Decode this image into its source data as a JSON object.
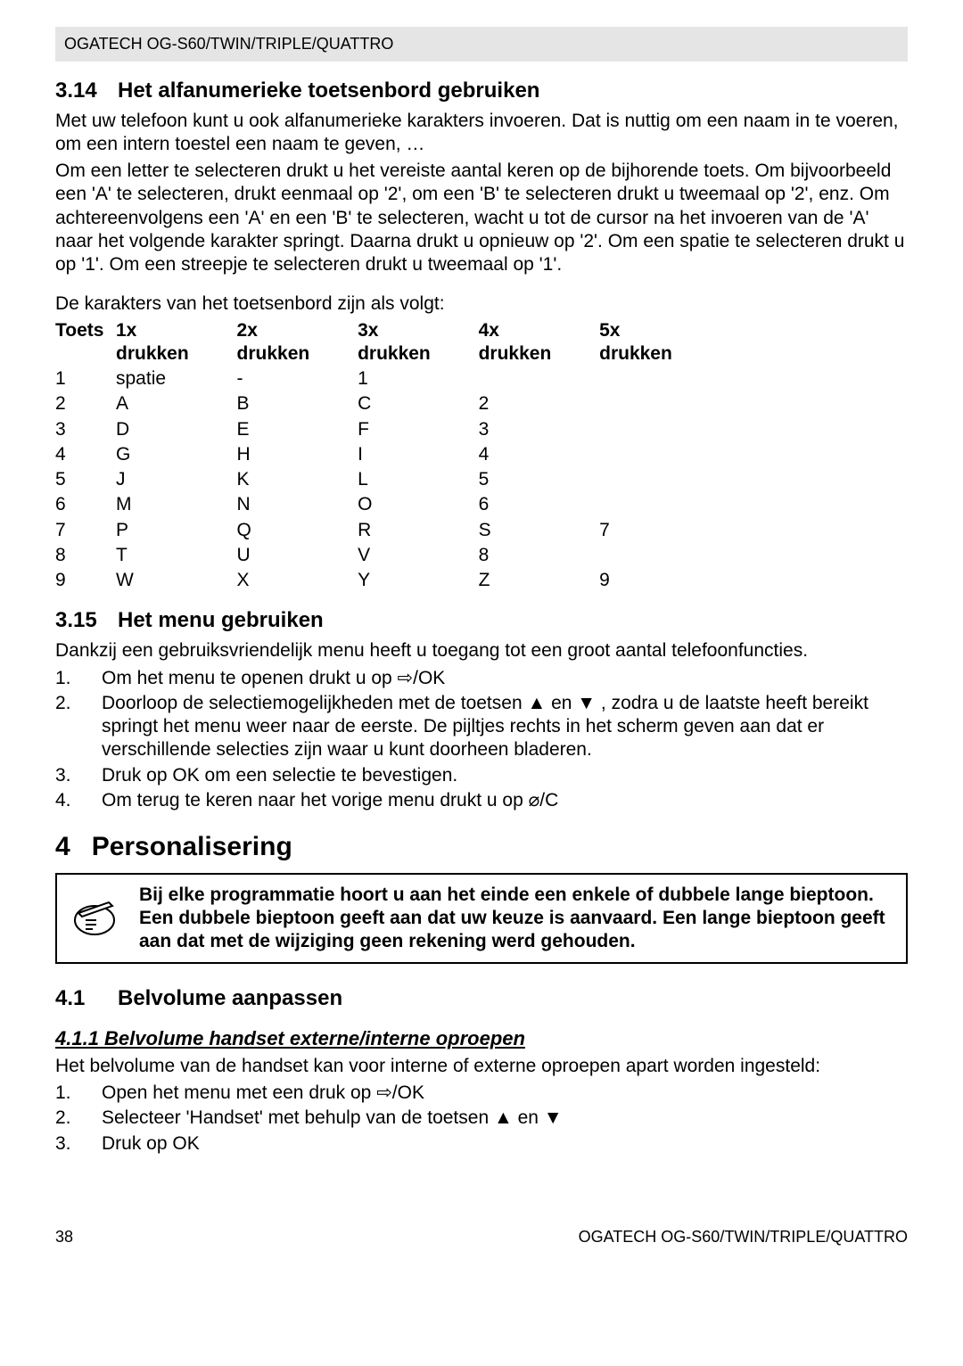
{
  "header": "OGATECH OG-S60/TWIN/TRIPLE/QUATTRO",
  "s314": {
    "num": "3.14",
    "title": "Het alfanumerieke toetsenbord gebruiken",
    "p1": "Met uw telefoon kunt u ook alfanumerieke karakters invoeren. Dat is nuttig om een naam in te voeren, om een intern toestel een naam te geven, …",
    "p2": "Om een letter te selecteren drukt u het vereiste aantal keren op de bijhorende toets. Om bijvoorbeeld een 'A' te selecteren, drukt eenmaal op '2', om een 'B' te selecteren drukt u tweemaal op '2', enz. Om achtereenvolgens een 'A' en een 'B' te selecteren, wacht u tot de cursor na het invoeren van de 'A' naar het volgende karakter springt. Daarna drukt u opnieuw op '2'. Om een spatie te selecteren drukt u op '1'. Om een streepje te selecteren drukt u tweemaal op '1'.",
    "caption": "De karakters van het toetsenbord zijn als volgt:",
    "head": {
      "c0": "Toets",
      "c1t": "1x",
      "c1b": "drukken",
      "c2t": "2x",
      "c2b": "drukken",
      "c3t": "3x",
      "c3b": "drukken",
      "c4t": "4x",
      "c4b": "drukken",
      "c5t": "5x",
      "c5b": "drukken"
    },
    "rows": [
      {
        "k": "1",
        "c1": "spatie",
        "c2": "-",
        "c3": "1",
        "c4": "",
        "c5": ""
      },
      {
        "k": "2",
        "c1": "A",
        "c2": "B",
        "c3": "C",
        "c4": "2",
        "c5": ""
      },
      {
        "k": "3",
        "c1": "D",
        "c2": "E",
        "c3": "F",
        "c4": "3",
        "c5": ""
      },
      {
        "k": "4",
        "c1": "G",
        "c2": "H",
        "c3": "I",
        "c4": "4",
        "c5": ""
      },
      {
        "k": "5",
        "c1": "J",
        "c2": "K",
        "c3": "L",
        "c4": "5",
        "c5": ""
      },
      {
        "k": "6",
        "c1": "M",
        "c2": "N",
        "c3": "O",
        "c4": "6",
        "c5": ""
      },
      {
        "k": "7",
        "c1": "P",
        "c2": "Q",
        "c3": "R",
        "c4": "S",
        "c5": "7"
      },
      {
        "k": "8",
        "c1": "T",
        "c2": "U",
        "c3": "V",
        "c4": "8",
        "c5": ""
      },
      {
        "k": "9",
        "c1": "W",
        "c2": "X",
        "c3": "Y",
        "c4": "Z",
        "c5": "9"
      }
    ]
  },
  "s315": {
    "num": "3.15",
    "title": "Het menu gebruiken",
    "intro": "Dankzij een gebruiksvriendelijk menu heeft u toegang tot een groot aantal telefoonfuncties.",
    "items": [
      {
        "n": "1.",
        "t": "Om het menu te openen drukt u op  ⇨/OK"
      },
      {
        "n": "2.",
        "t": "Doorloop de selectiemogelijkheden met de toetsen ▲ en ▼ , zodra u de laatste heeft bereikt springt het menu weer naar de eerste. De pijltjes rechts in het scherm geven aan dat er verschillende selecties zijn waar u kunt doorheen bladeren."
      },
      {
        "n": "3.",
        "t": "Druk op OK om een selectie te bevestigen."
      },
      {
        "n": "4.",
        "t": "Om terug te keren naar het vorige menu drukt u op  ⌀/C"
      }
    ]
  },
  "s4": {
    "num": "4",
    "title": "Personalisering",
    "note": "Bij elke programmatie hoort u aan het einde een enkele of dubbele lange bieptoon. Een dubbele bieptoon geeft aan dat uw keuze is aanvaard. Een lange bieptoon geeft aan dat met de wijziging geen rekening werd gehouden."
  },
  "s41": {
    "num": "4.1",
    "title": "Belvolume aanpassen"
  },
  "s411": {
    "title": "4.1.1 Belvolume handset externe/interne oproepen",
    "intro": "Het belvolume van de handset kan voor interne of externe oproepen apart worden ingesteld:",
    "items": [
      {
        "n": "1.",
        "t": "Open het menu met een druk op  ⇨/OK"
      },
      {
        "n": "2.",
        "t": "Selecteer 'Handset' met behulp van de toetsen ▲ en ▼"
      },
      {
        "n": "3.",
        "t": "Druk op OK"
      }
    ]
  },
  "footer": {
    "page": "38",
    "right": "OGATECH OG-S60/TWIN/TRIPLE/QUATTRO"
  }
}
